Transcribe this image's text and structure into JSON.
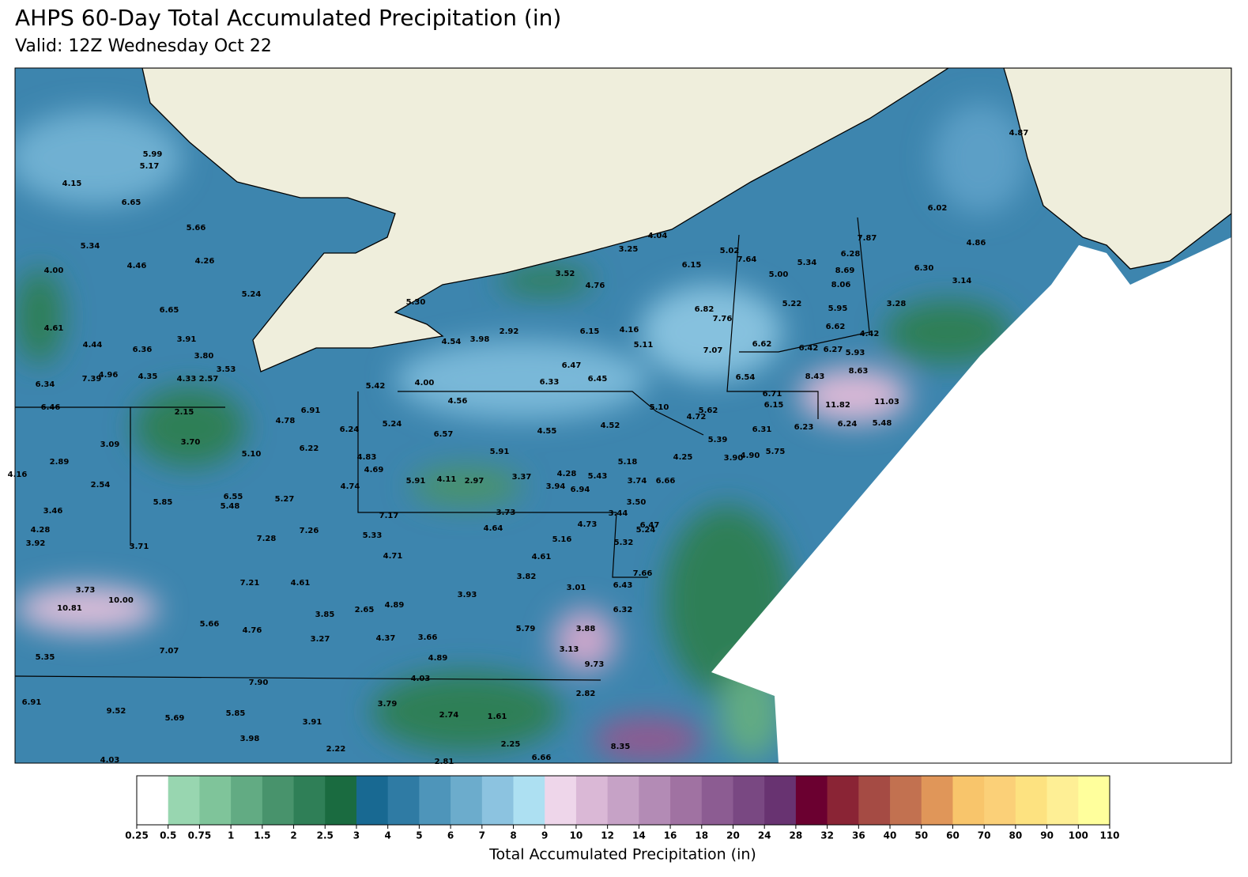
{
  "header": {
    "title": "AHPS 60-Day Total Accumulated Precipitation (in)",
    "subtitle": "Valid: 12Z Wednesday Oct 22"
  },
  "map": {
    "stations": [
      "5.99",
      "5.17",
      "4.15",
      "6.65",
      "5.66",
      "5.34",
      "4.26",
      "4.46",
      "4.00",
      "5.24",
      "6.65",
      "4.61",
      "3.91",
      "4.44",
      "6.36",
      "3.80",
      "3.53",
      "7.39",
      "4.96",
      "4.35",
      "4.33",
      "2.57",
      "6.34",
      "6.46",
      "2.15",
      "3.09",
      "3.70",
      "2.89",
      "4.16",
      "2.54",
      "3.46",
      "4.28",
      "3.92",
      "3.71",
      "5.85",
      "6.55",
      "5.48",
      "5.27",
      "5.10",
      "6.22",
      "6.91",
      "4.78",
      "6.24",
      "5.24",
      "4.83",
      "4.69",
      "4.74",
      "7.26",
      "7.28",
      "5.33",
      "7.17",
      "4.71",
      "7.21",
      "4.61",
      "3.73",
      "10.81",
      "10.00",
      "3.85",
      "2.65",
      "4.89",
      "5.66",
      "4.76",
      "3.27",
      "4.37",
      "3.66",
      "5.35",
      "7.07",
      "4.89",
      "7.90",
      "4.03",
      "6.91",
      "9.52",
      "5.69",
      "5.85",
      "3.79",
      "3.91",
      "2.74",
      "1.61",
      "3.98",
      "2.22",
      "2.25",
      "4.03",
      "2.81",
      "6.66",
      "8.35",
      "2.82",
      "9.73",
      "3.13",
      "3.88",
      "5.79",
      "6.32",
      "6.43",
      "3.01",
      "7.66",
      "3.93",
      "3.82",
      "4.61",
      "5.16",
      "5.32",
      "5.24",
      "6.47",
      "4.73",
      "3.44",
      "3.50",
      "4.64",
      "3.73",
      "5.91",
      "4.11",
      "2.97",
      "3.37",
      "4.28",
      "3.94",
      "5.43",
      "6.94",
      "5.18",
      "3.74",
      "6.66",
      "4.25",
      "3.90",
      "4.90",
      "5.75",
      "5.39",
      "6.31",
      "6.23",
      "6.24",
      "5.48",
      "11.82",
      "11.03",
      "6.15",
      "6.71",
      "8.43",
      "8.63",
      "6.54",
      "6.62",
      "6.42",
      "6.27",
      "5.93",
      "4.42",
      "6.62",
      "5.95",
      "5.22",
      "8.06",
      "8.69",
      "5.00",
      "5.34",
      "6.28",
      "7.87",
      "5.02",
      "7.64",
      "6.15",
      "6.82",
      "7.76",
      "7.07",
      "5.62",
      "4.72",
      "5.10",
      "4.52",
      "4.55",
      "6.57",
      "5.91",
      "4.56",
      "4.00",
      "5.42",
      "6.33",
      "6.45",
      "6.47",
      "5.11",
      "6.15",
      "4.16",
      "2.92",
      "3.98",
      "4.54",
      "5.30",
      "3.52",
      "4.76",
      "3.25",
      "4.04",
      "4.87",
      "6.02",
      "4.86",
      "6.30",
      "3.14",
      "3.28"
    ]
  },
  "colorbar": {
    "label": "Total Accumulated Precipitation (in)",
    "ticks": [
      0.25,
      0.5,
      0.75,
      1,
      1.5,
      2,
      2.5,
      3,
      4,
      5,
      6,
      7,
      8,
      9,
      10,
      12,
      14,
      16,
      18,
      20,
      24,
      28,
      32,
      36,
      40,
      50,
      60,
      70,
      80,
      90,
      100,
      110
    ],
    "colors": [
      "#ffffff",
      "#98d6b0",
      "#7fc49a",
      "#62ab83",
      "#48936c",
      "#2f7f57",
      "#1a6b40",
      "#186992",
      "#2f7ba4",
      "#4e95ba",
      "#6caccc",
      "#8cc3e0",
      "#ade0f2",
      "#eed6ea",
      "#dab8d6",
      "#c6a2c6",
      "#b38bb5",
      "#a072a2",
      "#8c5c92",
      "#794882",
      "#683371",
      "#6b0030",
      "#8a2435",
      "#a54b44",
      "#c27150",
      "#e09659",
      "#f8c56b",
      "#fbd078",
      "#fde280",
      "#feef95",
      "#ffff9c"
    ]
  }
}
